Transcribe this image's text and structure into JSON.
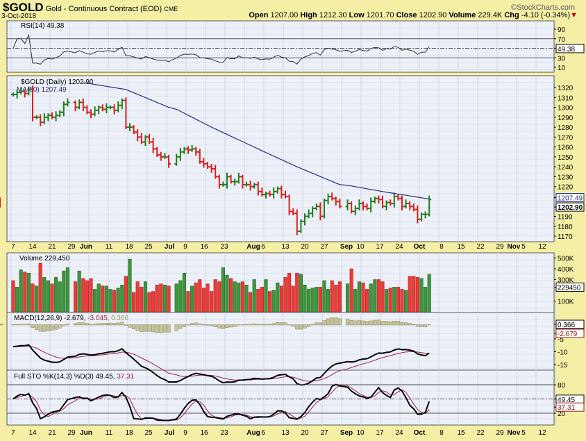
{
  "header": {
    "symbol": "$GOLD",
    "name": "Gold - Continuous Contract (EOD)",
    "exchange": "CME",
    "date": "3-Oct-2018",
    "brand": "©StockCharts.com",
    "open_label": "Open",
    "open": "1207.00",
    "high_label": "High",
    "high": "1212.30",
    "low_label": "Low",
    "low": "1201.70",
    "close_label": "Close",
    "close": "1202.90",
    "volume_label": "Volume",
    "volume": "229.4K",
    "chg_label": "Chg",
    "chg": "-4.10 (-0.34%)"
  },
  "colors": {
    "up": "#1e7d1e",
    "down": "#d9201c",
    "ma": "#1f2a8c",
    "signal": "#a0204a",
    "panel": "#eef0f8",
    "grid": "#c8d6ea"
  },
  "chart_data": [
    {
      "type": "line",
      "title": "RSI(14) 49.38",
      "yticks": [
        "90",
        "70",
        "30",
        "10"
      ],
      "last_label": "49.38",
      "ylim": [
        0,
        100
      ]
    },
    {
      "type": "ohlc",
      "title": "$GOLD (Daily) 1202.90",
      "ma_label": "MA(50) 1207.49",
      "ma_last": "1207.49",
      "last_label": "1202.90",
      "ylim": [
        1162,
        1332
      ],
      "yticks": [
        "1320",
        "1310",
        "1300",
        "1290",
        "1280",
        "1270",
        "1260",
        "1250",
        "1240",
        "1230",
        "1220",
        "1190",
        "1180",
        "1170"
      ],
      "close": [
        1313,
        1315,
        1316,
        1314,
        1318,
        1290,
        1290,
        1285,
        1290,
        1292,
        1290,
        1292,
        1295,
        1303,
        1305,
        1300,
        1305,
        1300,
        1295,
        1293,
        1297,
        1300,
        1298,
        1300,
        1300,
        1297,
        1302,
        1307,
        1280,
        1280,
        1275,
        1270,
        1265,
        1270,
        1265,
        1258,
        1252,
        1250,
        1250,
        1243,
        1250,
        1255,
        1258,
        1257,
        1258,
        1255,
        1245,
        1243,
        1240,
        1238,
        1230,
        1222,
        1222,
        1230,
        1225,
        1225,
        1230,
        1222,
        1222,
        1220,
        1222,
        1215,
        1212,
        1213,
        1212,
        1215,
        1218,
        1212,
        1210,
        1195,
        1193,
        1175,
        1185,
        1190,
        1193,
        1198,
        1200,
        1190,
        1206,
        1210,
        1208,
        1205,
        1200,
        1203,
        1195,
        1198,
        1203,
        1200,
        1198,
        1205,
        1208,
        1207,
        1200,
        1204,
        1203,
        1210,
        1208,
        1200,
        1203,
        1200,
        1197,
        1187,
        1192,
        1192,
        1207,
        1202.9
      ],
      "ma50_anchors": [
        [
          17,
          1325
        ],
        [
          28,
          1318
        ],
        [
          39,
          1300
        ],
        [
          49,
          1280
        ],
        [
          61,
          1258
        ],
        [
          71,
          1240
        ],
        [
          82,
          1222
        ],
        [
          92,
          1215
        ],
        [
          104,
          1207.49
        ]
      ]
    },
    {
      "type": "bar",
      "title": "Volume 229,450",
      "last_label": "229450",
      "yticks": [
        "500K",
        "400K",
        "300K",
        "100K"
      ],
      "unit": "K",
      "values": [
        290,
        230,
        390,
        370,
        360,
        260,
        240,
        450,
        320,
        290,
        260,
        320,
        280,
        380,
        410,
        280,
        380,
        310,
        290,
        310,
        210,
        260,
        240,
        240,
        210,
        200,
        220,
        250,
        330,
        490,
        180,
        280,
        230,
        280,
        180,
        190,
        250,
        260,
        250,
        240,
        260,
        290,
        360,
        190,
        240,
        270,
        300,
        220,
        260,
        190,
        300,
        280,
        410,
        340,
        310,
        280,
        270,
        280,
        250,
        180,
        300,
        210,
        230,
        300,
        190,
        200,
        270,
        240,
        320,
        360,
        240,
        360,
        350,
        250,
        210,
        220,
        230,
        230,
        290,
        210,
        290,
        250,
        280,
        260,
        400,
        210,
        280,
        270,
        210,
        260,
        300,
        300,
        280,
        210,
        220,
        230,
        230,
        210,
        200,
        330,
        330,
        320,
        310,
        230,
        350,
        229.45
      ]
    },
    {
      "type": "line",
      "title_a": "MACD(12,26,9) -2.679,",
      "title_b": "-3.045,",
      "title_c": "0.366",
      "last_macd": "-2.679",
      "last_hist": "0.366",
      "yticks": [
        "-5",
        "-10",
        "-15"
      ]
    },
    {
      "type": "line",
      "title_a": "Full STO %K(14,3) %D(3) 49.45,",
      "title_b": "37.31",
      "last_k": "49.45",
      "last_d": "37.31",
      "yticks": [
        "80",
        "20"
      ]
    }
  ],
  "xaxis": {
    "labels": [
      "7",
      "14",
      "21",
      "29",
      "Jun",
      "11",
      "18",
      "25",
      "Jul",
      "9",
      "16",
      "23",
      "Aug",
      "6",
      "13",
      "20",
      "27",
      "Sep",
      "10",
      "17",
      "24",
      "Oct",
      "8",
      "15",
      "22",
      "29",
      "Nov",
      "5",
      "12"
    ]
  }
}
